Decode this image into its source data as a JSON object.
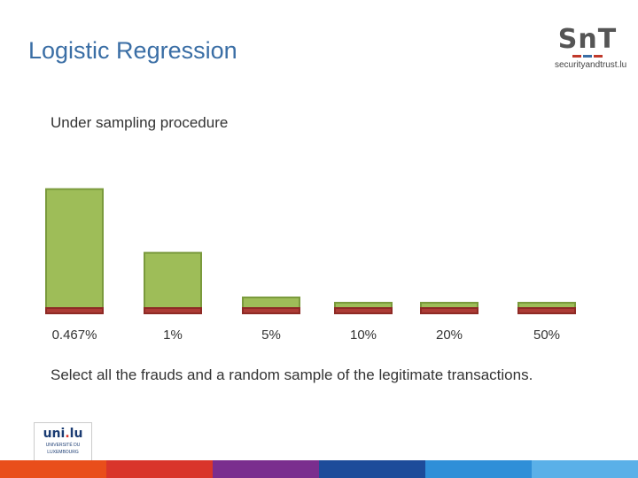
{
  "slide": {
    "title": "Logistic Regression",
    "subtitle": "Under sampling procedure",
    "caption": "Select all the frauds and a random sample of the legitimate transactions."
  },
  "logo": {
    "mark": "SnT",
    "sub": "securityandtrust.lu",
    "bar_colors": [
      "#c0392b",
      "#3a6ea5",
      "#c0392b"
    ]
  },
  "uni_logo": {
    "name_main": "uni",
    "name_dot": ".",
    "name_tail": "lu",
    "line1": "UNIVERSITÉ DU",
    "line2": "LUXEMBOURG"
  },
  "footer_colors": [
    "#e94e1b",
    "#d9352b",
    "#7a2e8e",
    "#1d4c9a",
    "#2f8fd8",
    "#5ab0e8"
  ],
  "chart_data": {
    "type": "bar",
    "categories": [
      "0.467%",
      "1%",
      "5%",
      "10%",
      "20%",
      "50%"
    ],
    "series": [
      {
        "values": [
          100,
          100,
          100,
          100,
          100,
          100
        ],
        "color": "#ac3b35"
      },
      {
        "values": [
          21313,
          9900,
          1900,
          900,
          400,
          100
        ],
        "color": "#9ebd58"
      }
    ],
    "stacked": true,
    "axes": "hidden"
  }
}
